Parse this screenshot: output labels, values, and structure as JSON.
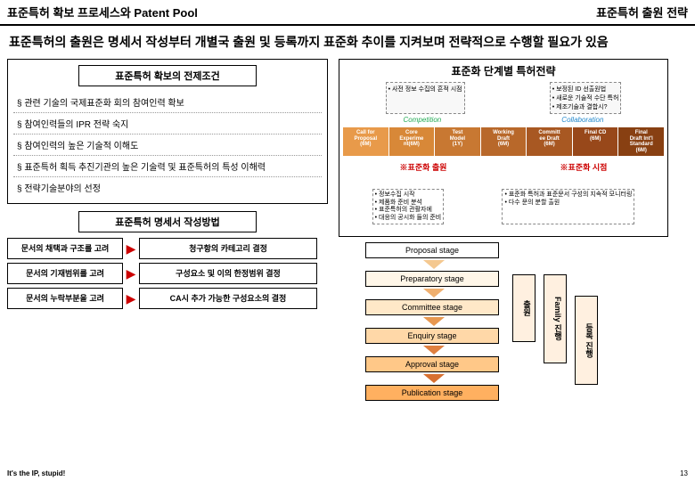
{
  "header": {
    "left": "표준특허 확보 프로세스와 Patent Pool",
    "right": "표준특허 출원 전략"
  },
  "subtitle": "표준특허의 출원은 명세서 작성부터 개별국 출원 및 등록까지 표준화 추이를 지켜보며 전략적으로 수행할 필요가 있음",
  "preconditions": {
    "title": "표준특허 확보의 전제조건",
    "items": [
      "§ 관련 기술의 국제표준화 회의 참여인력 확보",
      "§ 참여인력들의 IPR 전략 숙지",
      "§ 참여인력의 높은 기술적 이해도",
      "§ 표준특허 획득 추진기관의 높은 기술력 및 표준특허의 특성 이해력",
      "§ 전략기술분야의 선정"
    ]
  },
  "strategy": {
    "title": "표준화 단계별 특허전략",
    "top_left": "• 사전 정보 수집의 흔적 시점",
    "top_right": "• 보정된 ID 선출원법\\n• 새로운 기술적 수단 특허\\n• 제조기술과 결합시?",
    "phases": [
      {
        "label": "Call for\\nProposal\\n(6M)",
        "bg": "#e89a4a"
      },
      {
        "label": "Core\\nExperime\\nnt(6M)",
        "bg": "#d88838"
      },
      {
        "label": "Test\\nModel\\n(1Y)",
        "bg": "#c87832"
      },
      {
        "label": "Working\\nDraft\\n(6M)",
        "bg": "#b8682a"
      },
      {
        "label": "Committ\\nee Draft\\n(6M)",
        "bg": "#a85822"
      },
      {
        "label": "Final CD\\n(6M)",
        "bg": "#98481a"
      },
      {
        "label": "Final\\nDraft Int'l\\nStandard\\n(6M)",
        "bg": "#884012"
      }
    ],
    "above_labels": {
      "left": "Competition",
      "right": "Collaboration"
    },
    "red_labels": {
      "left": "※표준화 출원",
      "right": "※표준화 시점"
    },
    "bot_left": "• 정보수집 시작\\n• 제품화 준비 분석\\n• 표준특허의 관활자에\\n• 대응의 공시화 들의 준비",
    "bot_right": "• 표준화 특허과 표준문서 구성의 지속적 모니터링\\n• 다수 문의 분할 출원"
  },
  "spec": {
    "title": "표준특허 명세서 작성방법",
    "rows": [
      {
        "left": "문서의 채택과 구조를 고려",
        "right": "청구항의 카테고리 결정"
      },
      {
        "left": "문서의 기재범위를 고려",
        "right": "구성요소 및 이의 한정범위 결정"
      },
      {
        "left": "문서의 누락부분을 고려",
        "right": "CA시 추가 가능한 구성요소의 결정"
      }
    ]
  },
  "stages": {
    "items": [
      {
        "label": "Proposal stage",
        "bg": "#ffffff"
      },
      {
        "label": "Preparatory stage",
        "bg": "#fff6e8"
      },
      {
        "label": "Committee stage",
        "bg": "#ffe8c8"
      },
      {
        "label": "Enquiry stage",
        "bg": "#ffd8a8"
      },
      {
        "label": "Approval stage",
        "bg": "#ffc888"
      },
      {
        "label": "Publication stage",
        "bg": "#ffb060"
      }
    ],
    "arrow_colors": [
      "#f4c890",
      "#f0b070",
      "#e89850",
      "#e08040",
      "#d87030"
    ],
    "side": [
      "출원",
      "Family 진행",
      "등록 진행"
    ]
  },
  "footer": "It's the IP, stupid!",
  "page": "13"
}
